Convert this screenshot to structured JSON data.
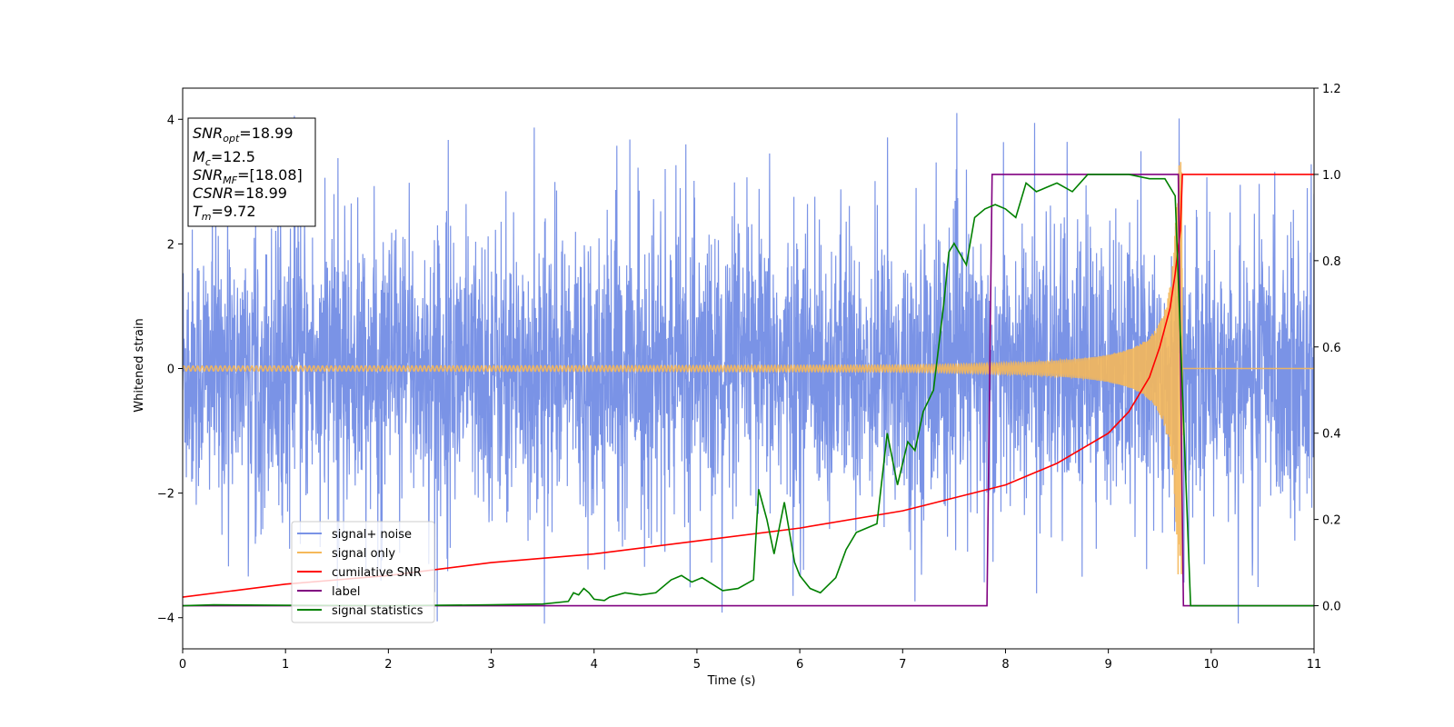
{
  "chart_data": {
    "type": "line",
    "xlabel": "Time (s)",
    "ylabel": "Whitened strain",
    "ylabel_right": "",
    "xlim": [
      0,
      11
    ],
    "ylim": [
      -4.5,
      4.5
    ],
    "ylim_right": [
      -0.1,
      1.2
    ],
    "x_ticks": [
      0,
      1,
      2,
      3,
      4,
      5,
      6,
      7,
      8,
      9,
      10,
      11
    ],
    "y_ticks": [
      -4,
      -2,
      0,
      2,
      4
    ],
    "y_ticks_right": [
      0.0,
      0.2,
      0.4,
      0.6,
      0.8,
      1.0,
      1.2
    ],
    "grid": false,
    "legend_position": "lower-left",
    "info_box": {
      "snr_opt": "=18.99",
      "mc": "=12.5",
      "snr_mf": "=[18.08]",
      "csnr": "=18.99",
      "tm": "=9.72"
    },
    "series": [
      {
        "name": "signal+ noise",
        "axis": "left",
        "color": "#7a93e6",
        "kind": "noise",
        "std": 1.1,
        "spike_max": 4.1,
        "x_range": [
          0,
          11
        ],
        "approx_points": 4000
      },
      {
        "name": "signal only",
        "axis": "left",
        "color": "#f5b85a",
        "kind": "chirp",
        "merger_time": 9.72,
        "peak_amplitude": 3.35,
        "x_range": [
          0,
          11
        ]
      },
      {
        "name": "cumilative SNR",
        "axis": "right",
        "color": "#ff0000",
        "x": [
          0,
          1,
          2,
          3,
          4,
          5,
          6,
          7,
          7.5,
          8,
          8.5,
          9,
          9.2,
          9.4,
          9.5,
          9.6,
          9.65,
          9.7,
          9.72,
          9.73,
          9.8,
          10,
          11
        ],
        "y": [
          0.02,
          0.05,
          0.07,
          0.1,
          0.12,
          0.15,
          0.18,
          0.22,
          0.25,
          0.28,
          0.33,
          0.4,
          0.45,
          0.53,
          0.6,
          0.69,
          0.77,
          0.87,
          1.0,
          1.0,
          1.0,
          1.0,
          1.0
        ]
      },
      {
        "name": "label",
        "axis": "right",
        "color": "#800080",
        "x": [
          0,
          7.82,
          7.87,
          9.68,
          9.73,
          11
        ],
        "y": [
          0,
          0,
          1,
          1,
          0,
          0
        ]
      },
      {
        "name": "signal statistics",
        "axis": "right",
        "color": "#008000",
        "x": [
          0,
          0.3,
          1,
          2,
          3,
          3.5,
          3.75,
          3.8,
          3.85,
          3.9,
          3.95,
          4.0,
          4.1,
          4.15,
          4.3,
          4.45,
          4.6,
          4.75,
          4.85,
          4.95,
          5.05,
          5.15,
          5.25,
          5.4,
          5.55,
          5.6,
          5.68,
          5.75,
          5.85,
          5.95,
          6.0,
          6.1,
          6.2,
          6.35,
          6.45,
          6.55,
          6.65,
          6.75,
          6.85,
          6.95,
          7.05,
          7.12,
          7.2,
          7.3,
          7.4,
          7.45,
          7.5,
          7.62,
          7.7,
          7.8,
          7.9,
          8.0,
          8.1,
          8.2,
          8.3,
          8.4,
          8.5,
          8.65,
          8.8,
          9.0,
          9.2,
          9.4,
          9.55,
          9.65,
          9.72,
          9.8,
          11
        ],
        "y": [
          0.0,
          0.002,
          0.001,
          0.0,
          0.002,
          0.004,
          0.01,
          0.03,
          0.025,
          0.04,
          0.03,
          0.015,
          0.012,
          0.02,
          0.03,
          0.025,
          0.03,
          0.06,
          0.07,
          0.055,
          0.065,
          0.05,
          0.035,
          0.04,
          0.06,
          0.27,
          0.2,
          0.12,
          0.24,
          0.1,
          0.07,
          0.04,
          0.03,
          0.065,
          0.13,
          0.17,
          0.18,
          0.19,
          0.4,
          0.28,
          0.38,
          0.36,
          0.45,
          0.5,
          0.7,
          0.82,
          0.84,
          0.79,
          0.9,
          0.92,
          0.93,
          0.92,
          0.9,
          0.98,
          0.96,
          0.97,
          0.98,
          0.96,
          1.0,
          1.0,
          1.0,
          0.99,
          0.99,
          0.95,
          0.5,
          0.0,
          0.0
        ]
      }
    ]
  }
}
